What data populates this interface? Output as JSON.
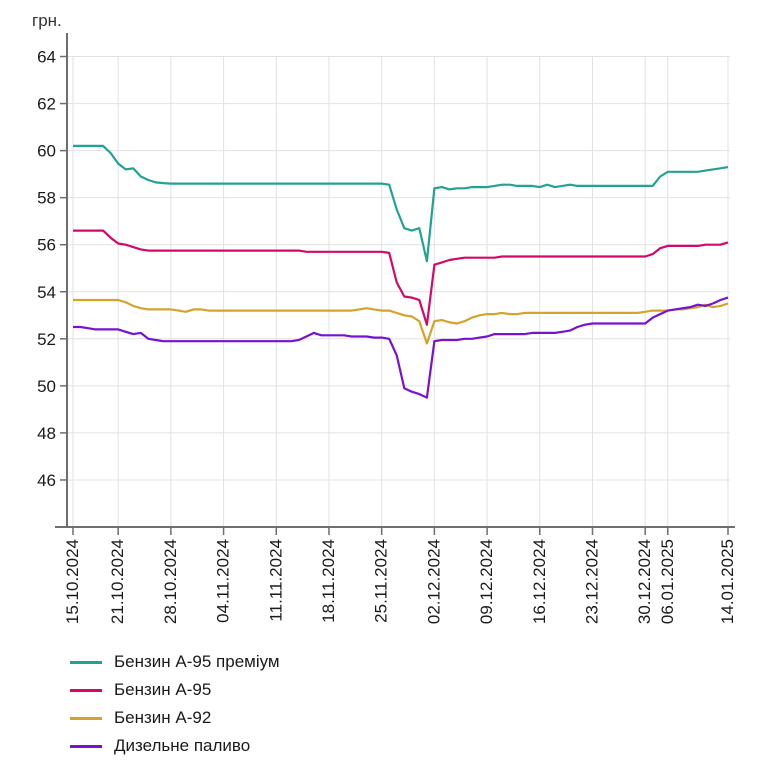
{
  "chart_data": {
    "type": "line",
    "title": "грн.",
    "unit": "грн.",
    "grid": true,
    "legend_position": "bottom-left",
    "ylim": [
      44,
      65
    ],
    "y_ticks": [
      46,
      48,
      50,
      52,
      54,
      56,
      58,
      60,
      62,
      64
    ],
    "x_ticks": [
      {
        "index": 0,
        "label": "15.10.2024"
      },
      {
        "index": 6,
        "label": "21.10.2024"
      },
      {
        "index": 13,
        "label": "28.10.2024"
      },
      {
        "index": 20,
        "label": "04.11.2024"
      },
      {
        "index": 27,
        "label": "11.11.2024"
      },
      {
        "index": 34,
        "label": "18.11.2024"
      },
      {
        "index": 41,
        "label": "25.11.2024"
      },
      {
        "index": 48,
        "label": "02.12.2024"
      },
      {
        "index": 55,
        "label": "09.12.2024"
      },
      {
        "index": 62,
        "label": "16.12.2024"
      },
      {
        "index": 69,
        "label": "23.12.2024"
      },
      {
        "index": 76,
        "label": "30.12.2024"
      },
      {
        "index": 79,
        "label": "06.01.2025"
      },
      {
        "index": 87,
        "label": "14.01.2025"
      }
    ],
    "series": [
      {
        "name": "Бензин А-95 преміум",
        "color": "#23a192",
        "values": [
          60.2,
          60.2,
          60.2,
          60.2,
          60.2,
          59.9,
          59.45,
          59.2,
          59.25,
          58.9,
          58.75,
          58.65,
          58.62,
          58.6,
          58.6,
          58.6,
          58.6,
          58.6,
          58.6,
          58.6,
          58.6,
          58.6,
          58.6,
          58.6,
          58.6,
          58.6,
          58.6,
          58.6,
          58.6,
          58.6,
          58.6,
          58.6,
          58.6,
          58.6,
          58.6,
          58.6,
          58.6,
          58.6,
          58.6,
          58.6,
          58.6,
          58.6,
          58.55,
          57.5,
          56.7,
          56.6,
          56.7,
          55.3,
          58.4,
          58.45,
          58.35,
          58.4,
          58.4,
          58.45,
          58.45,
          58.45,
          58.5,
          58.55,
          58.55,
          58.5,
          58.5,
          58.5,
          58.45,
          58.55,
          58.45,
          58.5,
          58.55,
          58.5,
          58.5,
          58.5,
          58.5,
          58.5,
          58.5,
          58.5,
          58.5,
          58.5,
          58.5,
          58.5,
          58.9,
          59.1,
          59.1,
          59.1,
          59.1,
          59.1,
          59.15,
          59.2,
          59.25,
          59.3
        ]
      },
      {
        "name": "Бензин А-95",
        "color": "#d2086b",
        "values": [
          56.6,
          56.6,
          56.6,
          56.6,
          56.6,
          56.3,
          56.05,
          56.0,
          55.9,
          55.8,
          55.75,
          55.75,
          55.75,
          55.75,
          55.75,
          55.75,
          55.75,
          55.75,
          55.75,
          55.75,
          55.75,
          55.75,
          55.75,
          55.75,
          55.75,
          55.75,
          55.75,
          55.75,
          55.75,
          55.75,
          55.75,
          55.7,
          55.7,
          55.7,
          55.7,
          55.7,
          55.7,
          55.7,
          55.7,
          55.7,
          55.7,
          55.7,
          55.65,
          54.4,
          53.8,
          53.75,
          53.65,
          52.6,
          55.15,
          55.25,
          55.35,
          55.4,
          55.45,
          55.45,
          55.45,
          55.45,
          55.45,
          55.5,
          55.5,
          55.5,
          55.5,
          55.5,
          55.5,
          55.5,
          55.5,
          55.5,
          55.5,
          55.5,
          55.5,
          55.5,
          55.5,
          55.5,
          55.5,
          55.5,
          55.5,
          55.5,
          55.5,
          55.6,
          55.85,
          55.95,
          55.95,
          55.95,
          55.95,
          55.95,
          56.0,
          56.0,
          56.0,
          56.1
        ]
      },
      {
        "name": "Бензин А-92",
        "color": "#d3a42b",
        "values": [
          53.65,
          53.65,
          53.65,
          53.65,
          53.65,
          53.65,
          53.65,
          53.55,
          53.4,
          53.3,
          53.25,
          53.25,
          53.25,
          53.25,
          53.2,
          53.15,
          53.25,
          53.25,
          53.2,
          53.2,
          53.2,
          53.2,
          53.2,
          53.2,
          53.2,
          53.2,
          53.2,
          53.2,
          53.2,
          53.2,
          53.2,
          53.2,
          53.2,
          53.2,
          53.2,
          53.2,
          53.2,
          53.2,
          53.25,
          53.3,
          53.25,
          53.2,
          53.2,
          53.1,
          53.0,
          52.95,
          52.75,
          51.8,
          52.75,
          52.8,
          52.7,
          52.65,
          52.75,
          52.9,
          53.0,
          53.05,
          53.05,
          53.1,
          53.05,
          53.05,
          53.1,
          53.1,
          53.1,
          53.1,
          53.1,
          53.1,
          53.1,
          53.1,
          53.1,
          53.1,
          53.1,
          53.1,
          53.1,
          53.1,
          53.1,
          53.1,
          53.15,
          53.2,
          53.2,
          53.2,
          53.25,
          53.25,
          53.3,
          53.35,
          53.45,
          53.35,
          53.4,
          53.5
        ]
      },
      {
        "name": "Дизельне паливо",
        "color": "#7612d1",
        "values": [
          52.5,
          52.5,
          52.45,
          52.4,
          52.4,
          52.4,
          52.4,
          52.3,
          52.2,
          52.25,
          52.0,
          51.95,
          51.9,
          51.9,
          51.9,
          51.9,
          51.9,
          51.9,
          51.9,
          51.9,
          51.9,
          51.9,
          51.9,
          51.9,
          51.9,
          51.9,
          51.9,
          51.9,
          51.9,
          51.9,
          51.95,
          52.1,
          52.25,
          52.15,
          52.15,
          52.15,
          52.15,
          52.1,
          52.1,
          52.1,
          52.05,
          52.05,
          52.0,
          51.3,
          49.9,
          49.75,
          49.65,
          49.5,
          51.9,
          51.95,
          51.95,
          51.95,
          52.0,
          52.0,
          52.05,
          52.1,
          52.2,
          52.2,
          52.2,
          52.2,
          52.2,
          52.25,
          52.25,
          52.25,
          52.25,
          52.3,
          52.35,
          52.5,
          52.6,
          52.65,
          52.65,
          52.65,
          52.65,
          52.65,
          52.65,
          52.65,
          52.65,
          52.9,
          53.05,
          53.2,
          53.25,
          53.3,
          53.35,
          53.45,
          53.4,
          53.5,
          53.65,
          53.75
        ]
      }
    ]
  },
  "colors": {
    "background": "#ffffff",
    "axis": "#6e6e6e",
    "grid": "#e2e2e2",
    "text": "#1a1a1a"
  }
}
